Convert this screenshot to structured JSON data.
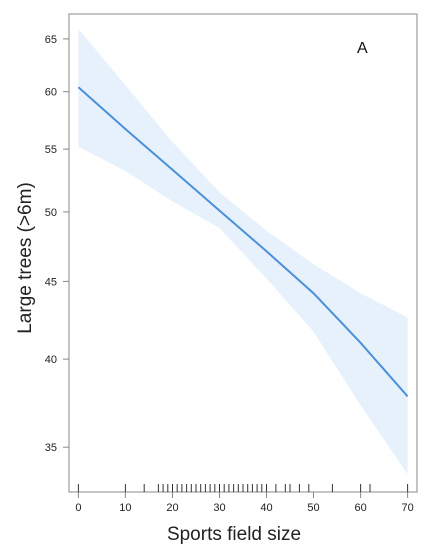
{
  "chart_data": {
    "type": "line",
    "panel_label": "A",
    "xlabel": "Sports field size",
    "ylabel": "Large trees (>6m)",
    "xlim": [
      -2,
      72
    ],
    "ylim": [
      32.7,
      67.5
    ],
    "y_scale": "log",
    "xticks": [
      0,
      10,
      20,
      30,
      40,
      50,
      60,
      70
    ],
    "yticks": [
      35,
      40,
      45,
      50,
      55,
      60,
      65
    ],
    "fit_line": {
      "x": [
        0,
        10,
        20,
        30,
        40,
        50,
        60,
        70
      ],
      "y": [
        60.4,
        56.7,
        53.3,
        50.1,
        47.1,
        44.2,
        41.0,
        37.8
      ]
    },
    "confidence_band": {
      "x": [
        0,
        10,
        20,
        30,
        40,
        50,
        60,
        70
      ],
      "lower": [
        55.2,
        53.2,
        50.8,
        48.8,
        45.2,
        41.7,
        37.3,
        33.6
      ],
      "upper": [
        66.0,
        60.6,
        55.6,
        51.5,
        48.6,
        46.2,
        44.2,
        42.6
      ]
    },
    "rug": [
      0,
      10,
      14,
      17,
      18,
      19,
      20,
      21,
      22,
      23,
      24,
      25,
      26,
      27,
      28,
      29,
      30,
      31,
      32,
      33,
      34,
      35,
      36,
      37,
      38,
      39,
      40,
      42,
      44,
      45,
      47,
      49,
      54,
      60,
      62,
      70
    ],
    "colors": {
      "line": "#4a90d9",
      "band": "#e6f1fc",
      "frame": "#888888",
      "rug": "#333333"
    },
    "grid": false
  }
}
